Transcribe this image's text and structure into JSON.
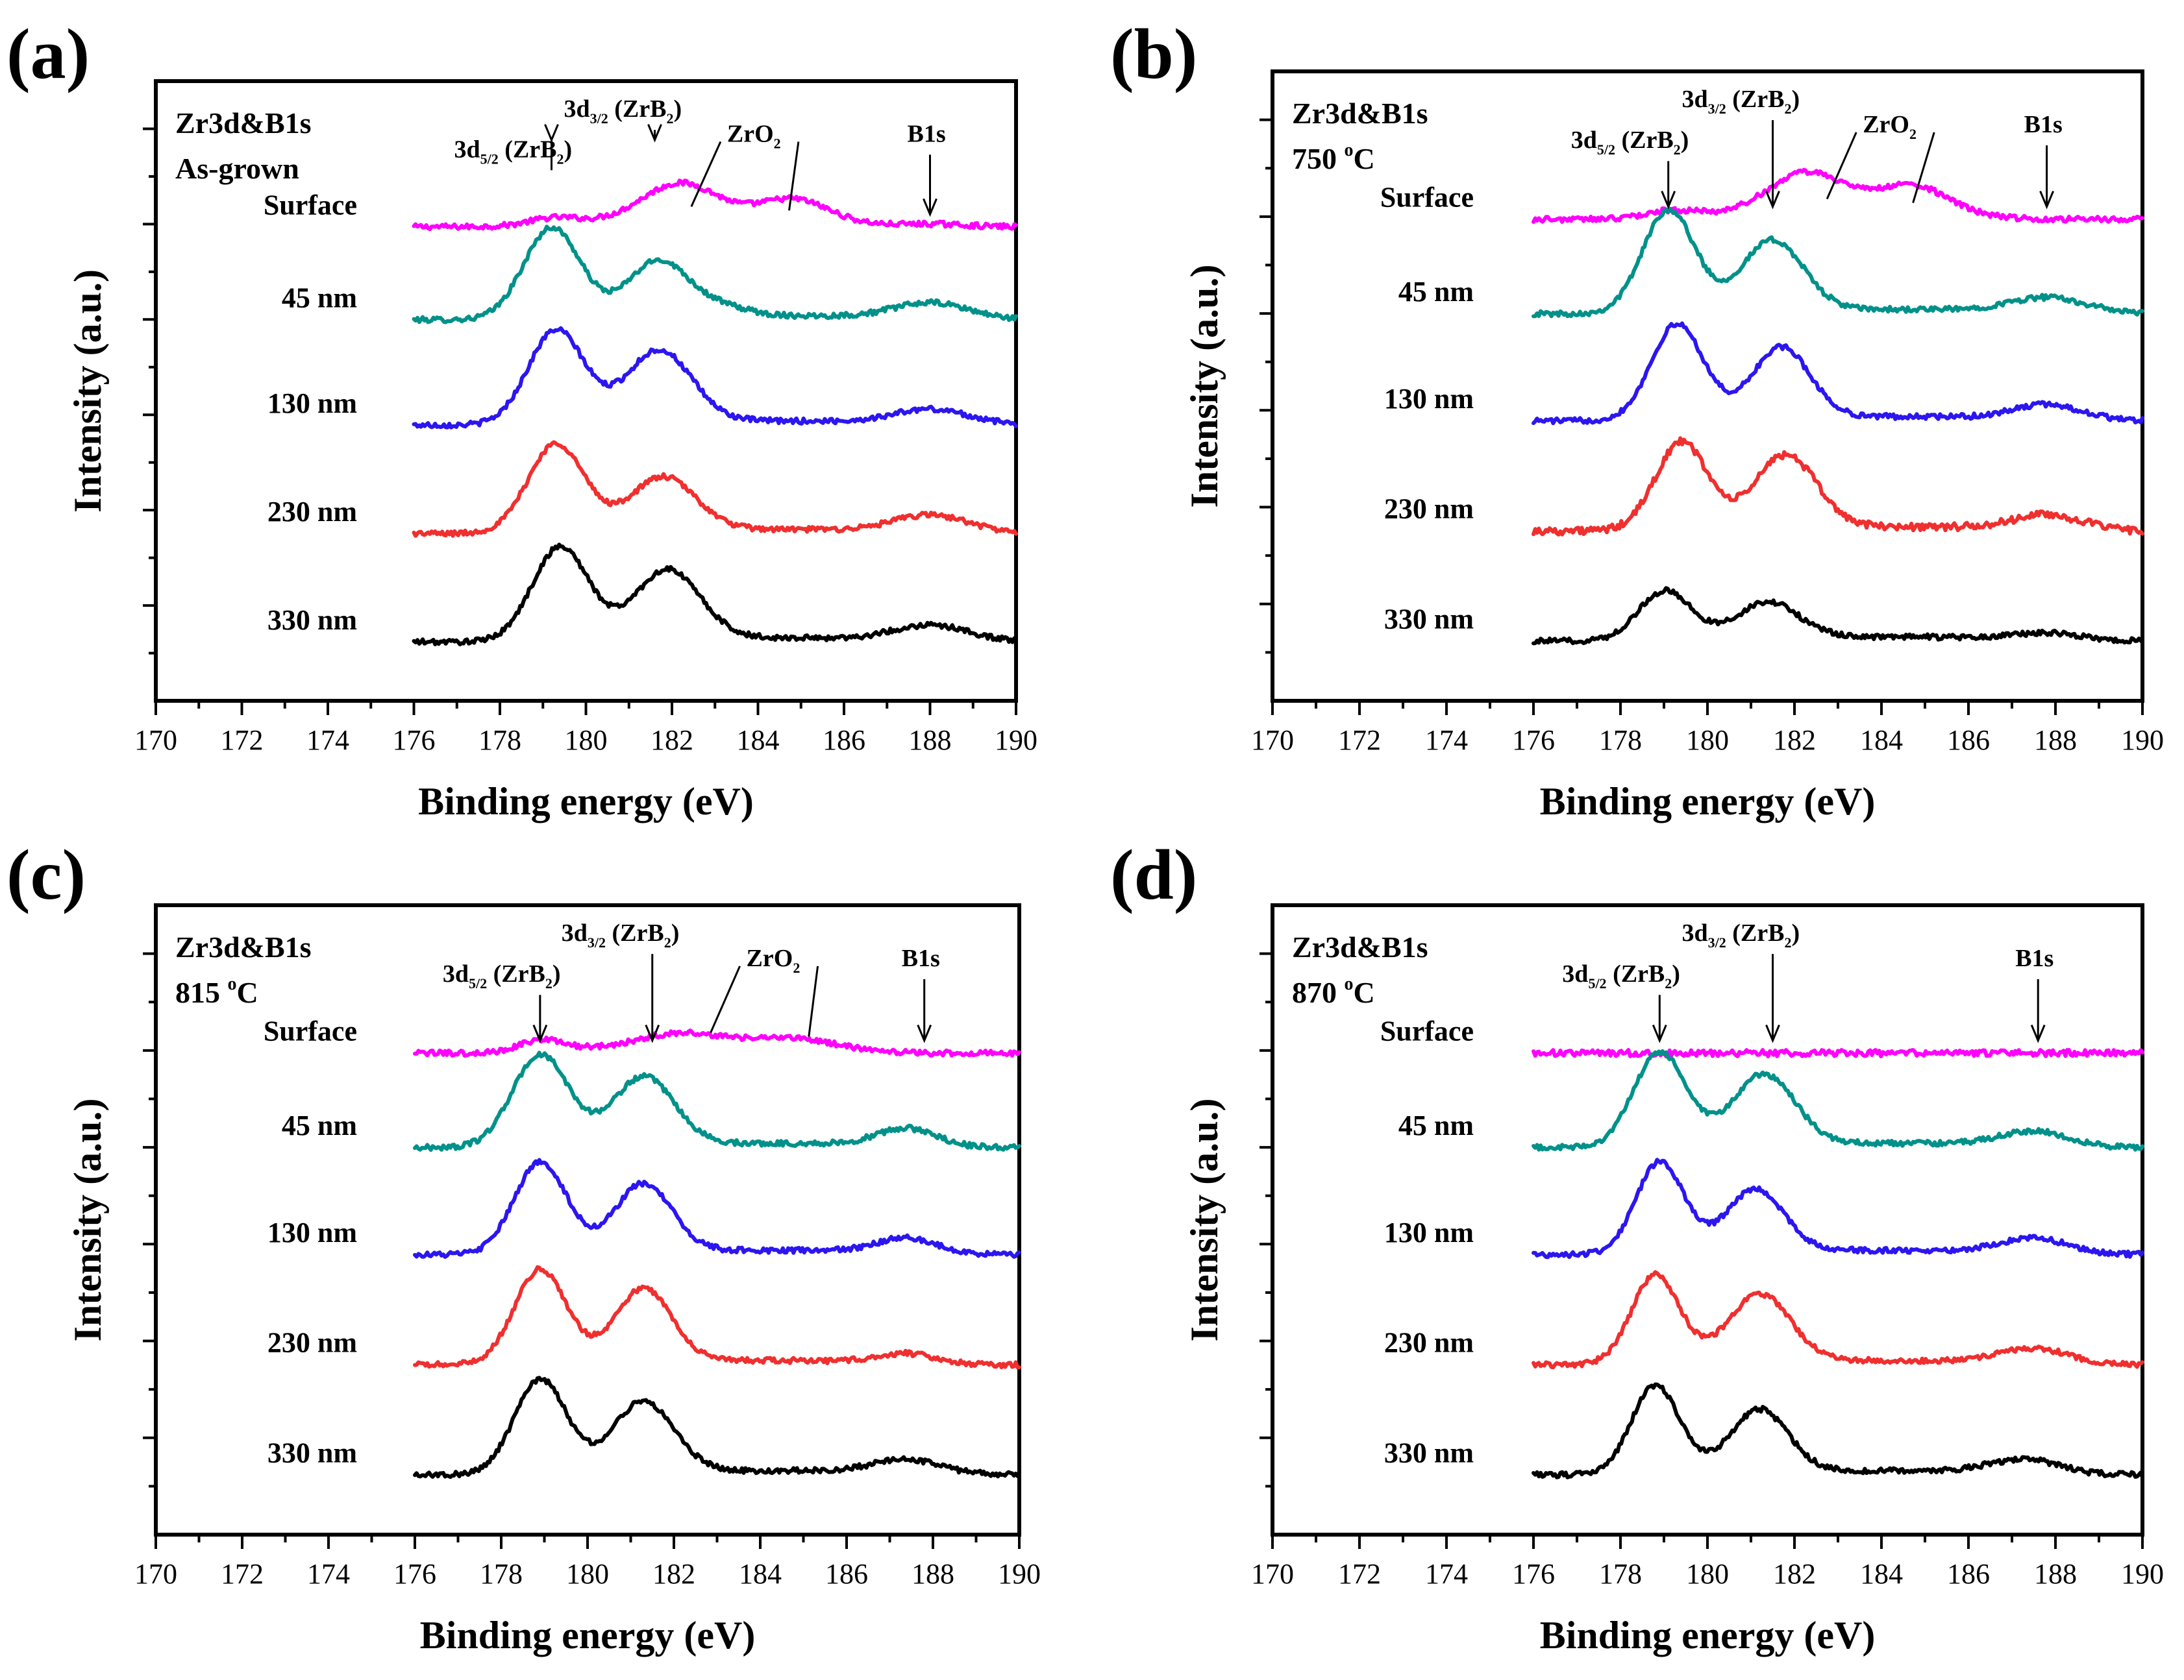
{
  "chart_data": [
    {
      "panel": "(a)",
      "type": "line",
      "title_lines": [
        "Zr3d&B1s",
        "As-grown"
      ],
      "xlabel": "Binding energy (eV)",
      "ylabel": "Intensity (a.u.)",
      "xlim": [
        170,
        190
      ],
      "xticks": [
        "170",
        "172",
        "174",
        "176",
        "178",
        "180",
        "182",
        "184",
        "186",
        "188",
        "190"
      ],
      "peak_labels": [
        {
          "name": "3d5/2 (ZrB2)",
          "main": "3d",
          "sub": "5/2",
          "mid": " (ZrB",
          "sub2": "2",
          "tail": ")",
          "energy": 179.2,
          "target": "45 nm"
        },
        {
          "name": "3d3/2 (ZrB2)",
          "main": "3d",
          "sub": "3/2",
          "mid": " (ZrB",
          "sub2": "2",
          "tail": ")",
          "energy": 181.6,
          "target": "45 nm"
        },
        {
          "name": "ZrO2",
          "main": "ZrO",
          "sub": "2",
          "mid": "",
          "sub2": "",
          "tail": "",
          "energy": 182.3,
          "energy2": 184.8,
          "target": "Surface"
        },
        {
          "name": "B1s",
          "main": "B1s",
          "sub": "",
          "mid": "",
          "sub2": "",
          "tail": "",
          "energy": 188.0,
          "target": "Surface"
        }
      ],
      "series": [
        {
          "name": "Surface",
          "color": "#ff00ff",
          "baseline": 8.0,
          "noise": 0.05,
          "slope": 0.0,
          "peaks": [
            [
              179.2,
              0.12,
              0.6
            ],
            [
              182.2,
              0.75,
              0.9
            ],
            [
              184.8,
              0.45,
              0.8
            ],
            [
              188,
              0.05,
              0.8
            ]
          ]
        },
        {
          "name": "45 nm",
          "color": "#00918a",
          "baseline": 6.0,
          "noise": 0.05,
          "slope": 0.0,
          "peaks": [
            [
              179.2,
              1.7,
              0.65
            ],
            [
              181.7,
              1.05,
              0.7
            ],
            [
              183.2,
              0.15,
              0.6
            ],
            [
              188,
              0.32,
              0.9
            ]
          ]
        },
        {
          "name": "130 nm",
          "color": "#2c16f0",
          "baseline": 4.0,
          "noise": 0.05,
          "slope": 0.0,
          "peaks": [
            [
              179.3,
              1.75,
              0.65
            ],
            [
              181.7,
              1.35,
              0.75
            ],
            [
              188,
              0.3,
              0.9
            ]
          ]
        },
        {
          "name": "230 nm",
          "color": "#f02f2f",
          "baseline": 2.0,
          "noise": 0.05,
          "slope": 0.0,
          "peaks": [
            [
              179.3,
              1.65,
              0.65
            ],
            [
              181.8,
              1.0,
              0.75
            ],
            [
              188,
              0.35,
              0.9
            ]
          ]
        },
        {
          "name": "330 nm",
          "color": "#000000",
          "baseline": 0.0,
          "noise": 0.05,
          "slope": 0.0,
          "peaks": [
            [
              179.4,
              1.75,
              0.65
            ],
            [
              181.9,
              1.3,
              0.75
            ],
            [
              188,
              0.32,
              0.9
            ]
          ]
        }
      ]
    },
    {
      "panel": "(b)",
      "type": "line",
      "title_lines": [
        "Zr3d&B1s",
        "750 °C"
      ],
      "xlabel": "Binding energy (eV)",
      "ylabel": "Intensity (a.u.)",
      "xlim": [
        170,
        190
      ],
      "xticks": [
        "170",
        "172",
        "174",
        "176",
        "178",
        "180",
        "182",
        "184",
        "186",
        "188",
        "190"
      ],
      "peak_labels": [
        {
          "name": "3d5/2 (ZrB2)",
          "main": "3d",
          "sub": "5/2",
          "mid": " (ZrB",
          "sub2": "2",
          "tail": ")",
          "energy": 179.1,
          "target": "Surface"
        },
        {
          "name": "3d3/2 (ZrB2)",
          "main": "3d",
          "sub": "3/2",
          "mid": " (ZrB",
          "sub2": "2",
          "tail": ")",
          "energy": 181.5,
          "target": "Surface"
        },
        {
          "name": "ZrO2",
          "main": "ZrO",
          "sub": "2",
          "mid": "",
          "sub2": "",
          "tail": "",
          "energy": 182.6,
          "energy2": 184.8,
          "target": "Surface"
        },
        {
          "name": "B1s",
          "main": "B1s",
          "sub": "",
          "mid": "",
          "sub2": "",
          "tail": "",
          "energy": 187.8,
          "target": "Surface"
        }
      ],
      "series": [
        {
          "name": "Surface",
          "color": "#ff00ff",
          "baseline": 8.0,
          "noise": 0.05,
          "slope": 0.0,
          "peaks": [
            [
              179.1,
              0.12,
              0.6
            ],
            [
              182.3,
              0.8,
              0.9
            ],
            [
              184.7,
              0.55,
              0.8
            ]
          ]
        },
        {
          "name": "45 nm",
          "color": "#00918a",
          "baseline": 6.0,
          "noise": 0.05,
          "slope": 0.0,
          "peaks": [
            [
              179.1,
              1.9,
              0.6
            ],
            [
              181.5,
              1.3,
              0.7
            ],
            [
              187.8,
              0.3,
              0.9
            ]
          ]
        },
        {
          "name": "130 nm",
          "color": "#2c16f0",
          "baseline": 4.0,
          "noise": 0.05,
          "slope": 0.0,
          "peaks": [
            [
              179.3,
              1.75,
              0.6
            ],
            [
              181.7,
              1.3,
              0.65
            ],
            [
              187.8,
              0.3,
              0.8
            ]
          ]
        },
        {
          "name": "230 nm",
          "color": "#f02f2f",
          "baseline": 2.0,
          "noise": 0.07,
          "slope": 0.0,
          "peaks": [
            [
              179.4,
              1.6,
              0.6
            ],
            [
              181.8,
              1.35,
              0.7
            ],
            [
              187.8,
              0.3,
              0.8
            ]
          ]
        },
        {
          "name": "330 nm",
          "color": "#000000",
          "baseline": 0.0,
          "noise": 0.05,
          "slope": 0.0,
          "peaks": [
            [
              179.0,
              0.9,
              0.6
            ],
            [
              181.4,
              0.65,
              0.7
            ],
            [
              187.8,
              0.15,
              0.8
            ]
          ]
        }
      ]
    },
    {
      "panel": "(c)",
      "type": "line",
      "title_lines": [
        "Zr3d&B1s",
        "815 °C"
      ],
      "xlabel": "Binding energy (eV)",
      "ylabel": "Intensity (a.u.)",
      "xlim": [
        170,
        190
      ],
      "xticks": [
        "170",
        "172",
        "174",
        "176",
        "178",
        "180",
        "182",
        "184",
        "186",
        "188",
        "190"
      ],
      "peak_labels": [
        {
          "name": "3d5/2 (ZrB2)",
          "main": "3d",
          "sub": "5/2",
          "mid": " (ZrB",
          "sub2": "2",
          "tail": ")",
          "energy": 178.9,
          "target": "Surface"
        },
        {
          "name": "3d3/2 (ZrB2)",
          "main": "3d",
          "sub": "3/2",
          "mid": " (ZrB",
          "sub2": "2",
          "tail": ")",
          "energy": 181.5,
          "target": "Surface"
        },
        {
          "name": "ZrO2",
          "main": "ZrO",
          "sub": "2",
          "mid": "",
          "sub2": "",
          "tail": "",
          "energy": 182.7,
          "energy2": 185.2,
          "target": "Surface"
        },
        {
          "name": "B1s",
          "main": "B1s",
          "sub": "",
          "mid": "",
          "sub2": "",
          "tail": "",
          "energy": 187.8,
          "target": "Surface"
        }
      ],
      "series": [
        {
          "name": "Surface",
          "color": "#ff00ff",
          "baseline": 8.0,
          "noise": 0.05,
          "slope": 0.0,
          "peaks": [
            [
              178.9,
              0.22,
              0.5
            ],
            [
              182.2,
              0.3,
              1.0
            ],
            [
              184.7,
              0.2,
              0.9
            ]
          ]
        },
        {
          "name": "45 nm",
          "color": "#00918a",
          "baseline": 6.0,
          "noise": 0.05,
          "slope": 0.0,
          "peaks": [
            [
              178.9,
              1.7,
              0.65
            ],
            [
              181.3,
              1.25,
              0.7
            ],
            [
              187.4,
              0.35,
              0.7
            ]
          ]
        },
        {
          "name": "130 nm",
          "color": "#2c16f0",
          "baseline": 4.0,
          "noise": 0.05,
          "slope": 0.0,
          "peaks": [
            [
              178.9,
              1.7,
              0.6
            ],
            [
              181.3,
              1.25,
              0.65
            ],
            [
              187.4,
              0.3,
              0.7
            ]
          ]
        },
        {
          "name": "230 nm",
          "color": "#f02f2f",
          "baseline": 2.0,
          "noise": 0.05,
          "slope": 0.0,
          "peaks": [
            [
              178.9,
              1.75,
              0.6
            ],
            [
              181.3,
              1.35,
              0.65
            ],
            [
              187.4,
              0.2,
              0.7
            ]
          ]
        },
        {
          "name": "330 nm",
          "color": "#000000",
          "baseline": 0.0,
          "noise": 0.05,
          "slope": 0.0,
          "peaks": [
            [
              178.9,
              1.75,
              0.6
            ],
            [
              181.3,
              1.3,
              0.7
            ],
            [
              187.4,
              0.28,
              0.8
            ]
          ]
        }
      ]
    },
    {
      "panel": "(d)",
      "type": "line",
      "title_lines": [
        "Zr3d&B1s",
        "870 °C"
      ],
      "xlabel": "Binding energy (eV)",
      "ylabel": "Intensity (a.u.)",
      "xlim": [
        170,
        190
      ],
      "xticks": [
        "170",
        "172",
        "174",
        "176",
        "178",
        "180",
        "182",
        "184",
        "186",
        "188",
        "190"
      ],
      "peak_labels": [
        {
          "name": "3d5/2 (ZrB2)",
          "main": "3d",
          "sub": "5/2",
          "mid": " (ZrB",
          "sub2": "2",
          "tail": ")",
          "energy": 178.9,
          "target": "Surface"
        },
        {
          "name": "3d3/2 (ZrB2)",
          "main": "3d",
          "sub": "3/2",
          "mid": " (ZrB",
          "sub2": "2",
          "tail": ")",
          "energy": 181.5,
          "target": "Surface"
        },
        {
          "name": "B1s",
          "main": "B1s",
          "sub": "",
          "mid": "",
          "sub2": "",
          "tail": "",
          "energy": 187.6,
          "target": "Surface"
        }
      ],
      "series": [
        {
          "name": "Surface",
          "color": "#ff00ff",
          "baseline": 8.0,
          "noise": 0.06,
          "slope": 0.0,
          "peaks": []
        },
        {
          "name": "45 nm",
          "color": "#00918a",
          "baseline": 6.0,
          "noise": 0.05,
          "slope": 0.0,
          "peaks": [
            [
              178.9,
              1.75,
              0.6
            ],
            [
              181.3,
              1.3,
              0.7
            ],
            [
              187.5,
              0.3,
              0.8
            ]
          ]
        },
        {
          "name": "130 nm",
          "color": "#2c16f0",
          "baseline": 4.0,
          "noise": 0.05,
          "slope": 0.0,
          "peaks": [
            [
              178.9,
              1.7,
              0.55
            ],
            [
              181.1,
              1.15,
              0.65
            ],
            [
              187.5,
              0.3,
              0.8
            ]
          ]
        },
        {
          "name": "230 nm",
          "color": "#f02f2f",
          "baseline": 2.0,
          "noise": 0.05,
          "slope": 0.0,
          "peaks": [
            [
              178.8,
              1.65,
              0.55
            ],
            [
              181.2,
              1.25,
              0.7
            ],
            [
              187.5,
              0.3,
              0.8
            ]
          ]
        },
        {
          "name": "330 nm",
          "color": "#000000",
          "baseline": 0.0,
          "noise": 0.05,
          "slope": 0.0,
          "peaks": [
            [
              178.8,
              1.65,
              0.55
            ],
            [
              181.2,
              1.15,
              0.65
            ],
            [
              187.3,
              0.28,
              0.8
            ]
          ]
        }
      ]
    }
  ]
}
